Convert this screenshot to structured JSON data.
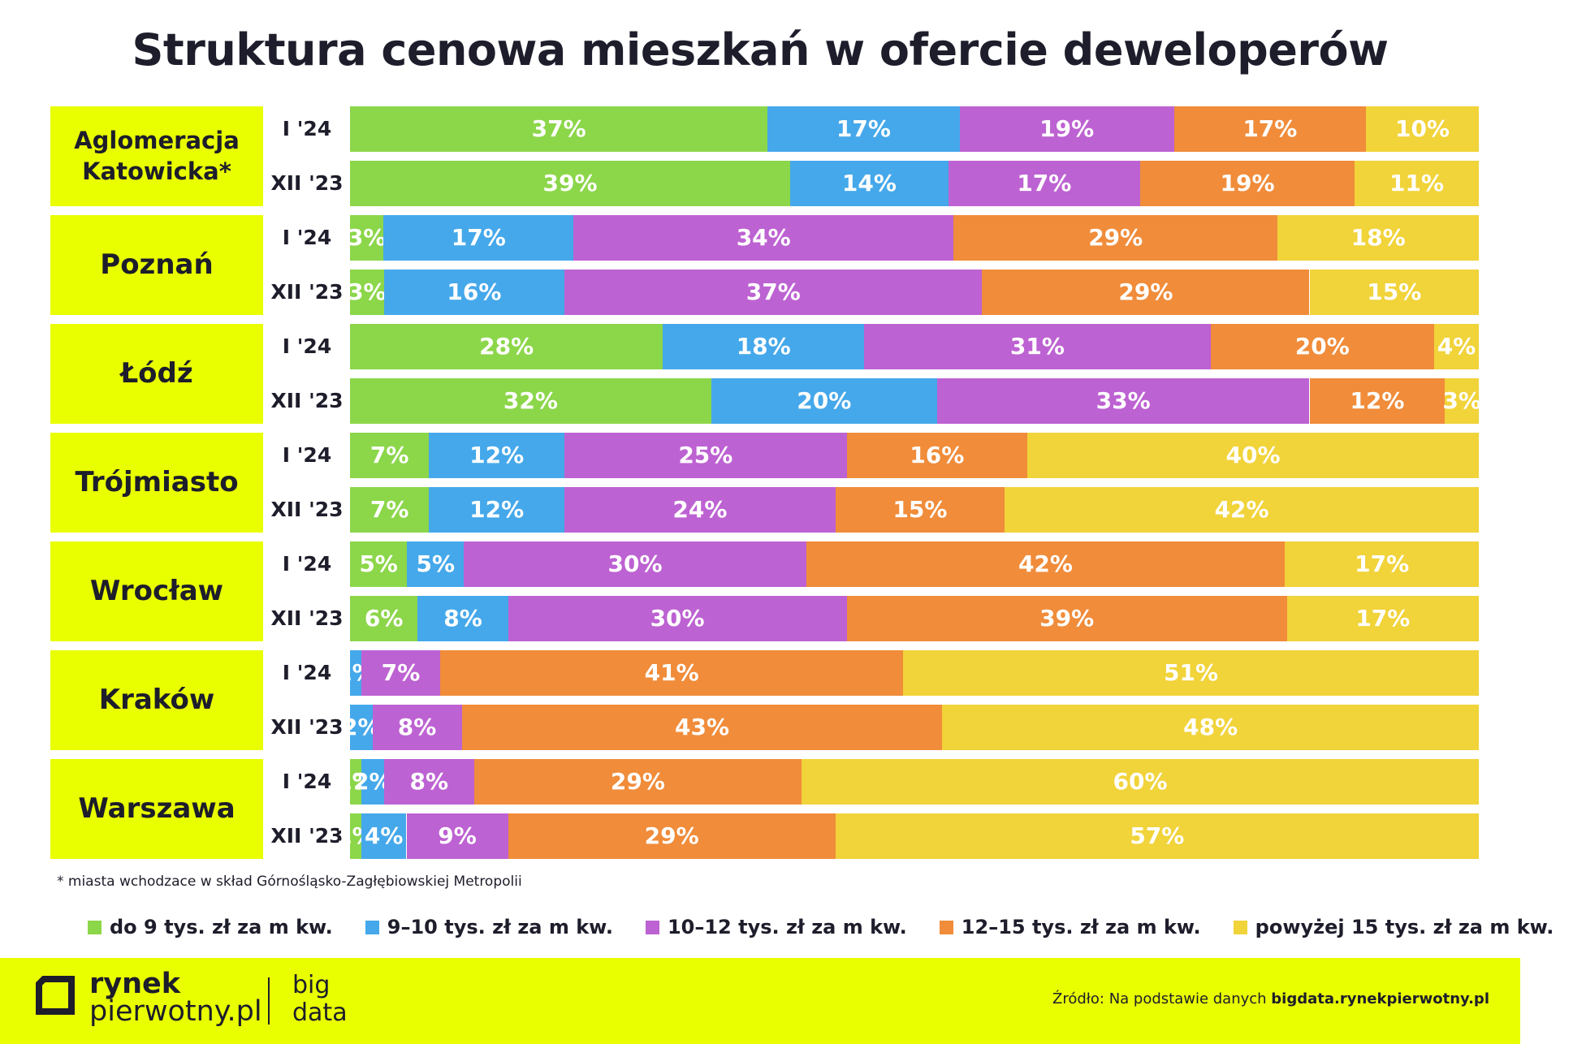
{
  "colors": {
    "accent": "#e9ff00",
    "series": [
      "#8cd64a",
      "#45a8ea",
      "#bd62d2",
      "#f08c3a",
      "#f1d33a"
    ]
  },
  "chart_data": {
    "type": "bar",
    "orientation": "horizontal",
    "stacked": true,
    "percent": true,
    "title": "Struktura cenowa mieszkań w ofercie deweloperów",
    "legend_placement": "bottom",
    "grid": false,
    "series": [
      {
        "name": "do 9 tys. zł za m kw.",
        "color": "#8cd64a"
      },
      {
        "name": "9–10 tys. zł za m kw.",
        "color": "#45a8ea"
      },
      {
        "name": "10–12 tys. zł za m kw.",
        "color": "#bd62d2"
      },
      {
        "name": "12–15 tys. zł za m kw.",
        "color": "#f08c3a"
      },
      {
        "name": "powyżej 15 tys. zł za m kw.",
        "color": "#f1d33a"
      }
    ],
    "groups": [
      {
        "city": "Aglomeracja Katowicka*",
        "rows": [
          {
            "period": "I '24",
            "values": [
              37,
              17,
              19,
              17,
              10
            ]
          },
          {
            "period": "XII '23",
            "values": [
              39,
              14,
              17,
              19,
              11
            ]
          }
        ]
      },
      {
        "city": "Poznań",
        "rows": [
          {
            "period": "I '24",
            "values": [
              3,
              17,
              34,
              29,
              18
            ]
          },
          {
            "period": "XII '23",
            "values": [
              3,
              16,
              37,
              29,
              15
            ]
          }
        ]
      },
      {
        "city": "Łódź",
        "rows": [
          {
            "period": "I '24",
            "values": [
              28,
              18,
              31,
              20,
              4
            ]
          },
          {
            "period": "XII '23",
            "values": [
              32,
              20,
              33,
              12,
              3
            ]
          }
        ]
      },
      {
        "city": "Trójmiasto",
        "rows": [
          {
            "period": "I '24",
            "values": [
              7,
              12,
              25,
              16,
              40
            ]
          },
          {
            "period": "XII '23",
            "values": [
              7,
              12,
              24,
              15,
              42
            ]
          }
        ]
      },
      {
        "city": "Wrocław",
        "rows": [
          {
            "period": "I '24",
            "values": [
              5,
              5,
              30,
              42,
              17
            ]
          },
          {
            "period": "XII '23",
            "values": [
              6,
              8,
              30,
              39,
              17
            ]
          }
        ]
      },
      {
        "city": "Kraków",
        "rows": [
          {
            "period": "I '24",
            "values": [
              0,
              1,
              7,
              41,
              51
            ]
          },
          {
            "period": "XII '23",
            "values": [
              0,
              2,
              8,
              43,
              48
            ]
          }
        ]
      },
      {
        "city": "Warszawa",
        "rows": [
          {
            "period": "I '24",
            "values": [
              1,
              2,
              8,
              29,
              60
            ]
          },
          {
            "period": "XII '23",
            "values": [
              1,
              4,
              9,
              29,
              57
            ]
          }
        ]
      }
    ]
  },
  "footnote": "* miasta wchodzace w skład Górnośląsko-Zagłębiowskiej Metropolii",
  "footer": {
    "brand_line1": "rynek",
    "brand_line2": "pierwotny.pl",
    "brand_big": "big",
    "brand_data": "data",
    "source_prefix": "Źródło: Na podstawie danych ",
    "source_url": "bigdata.rynekpierwotny.pl"
  }
}
